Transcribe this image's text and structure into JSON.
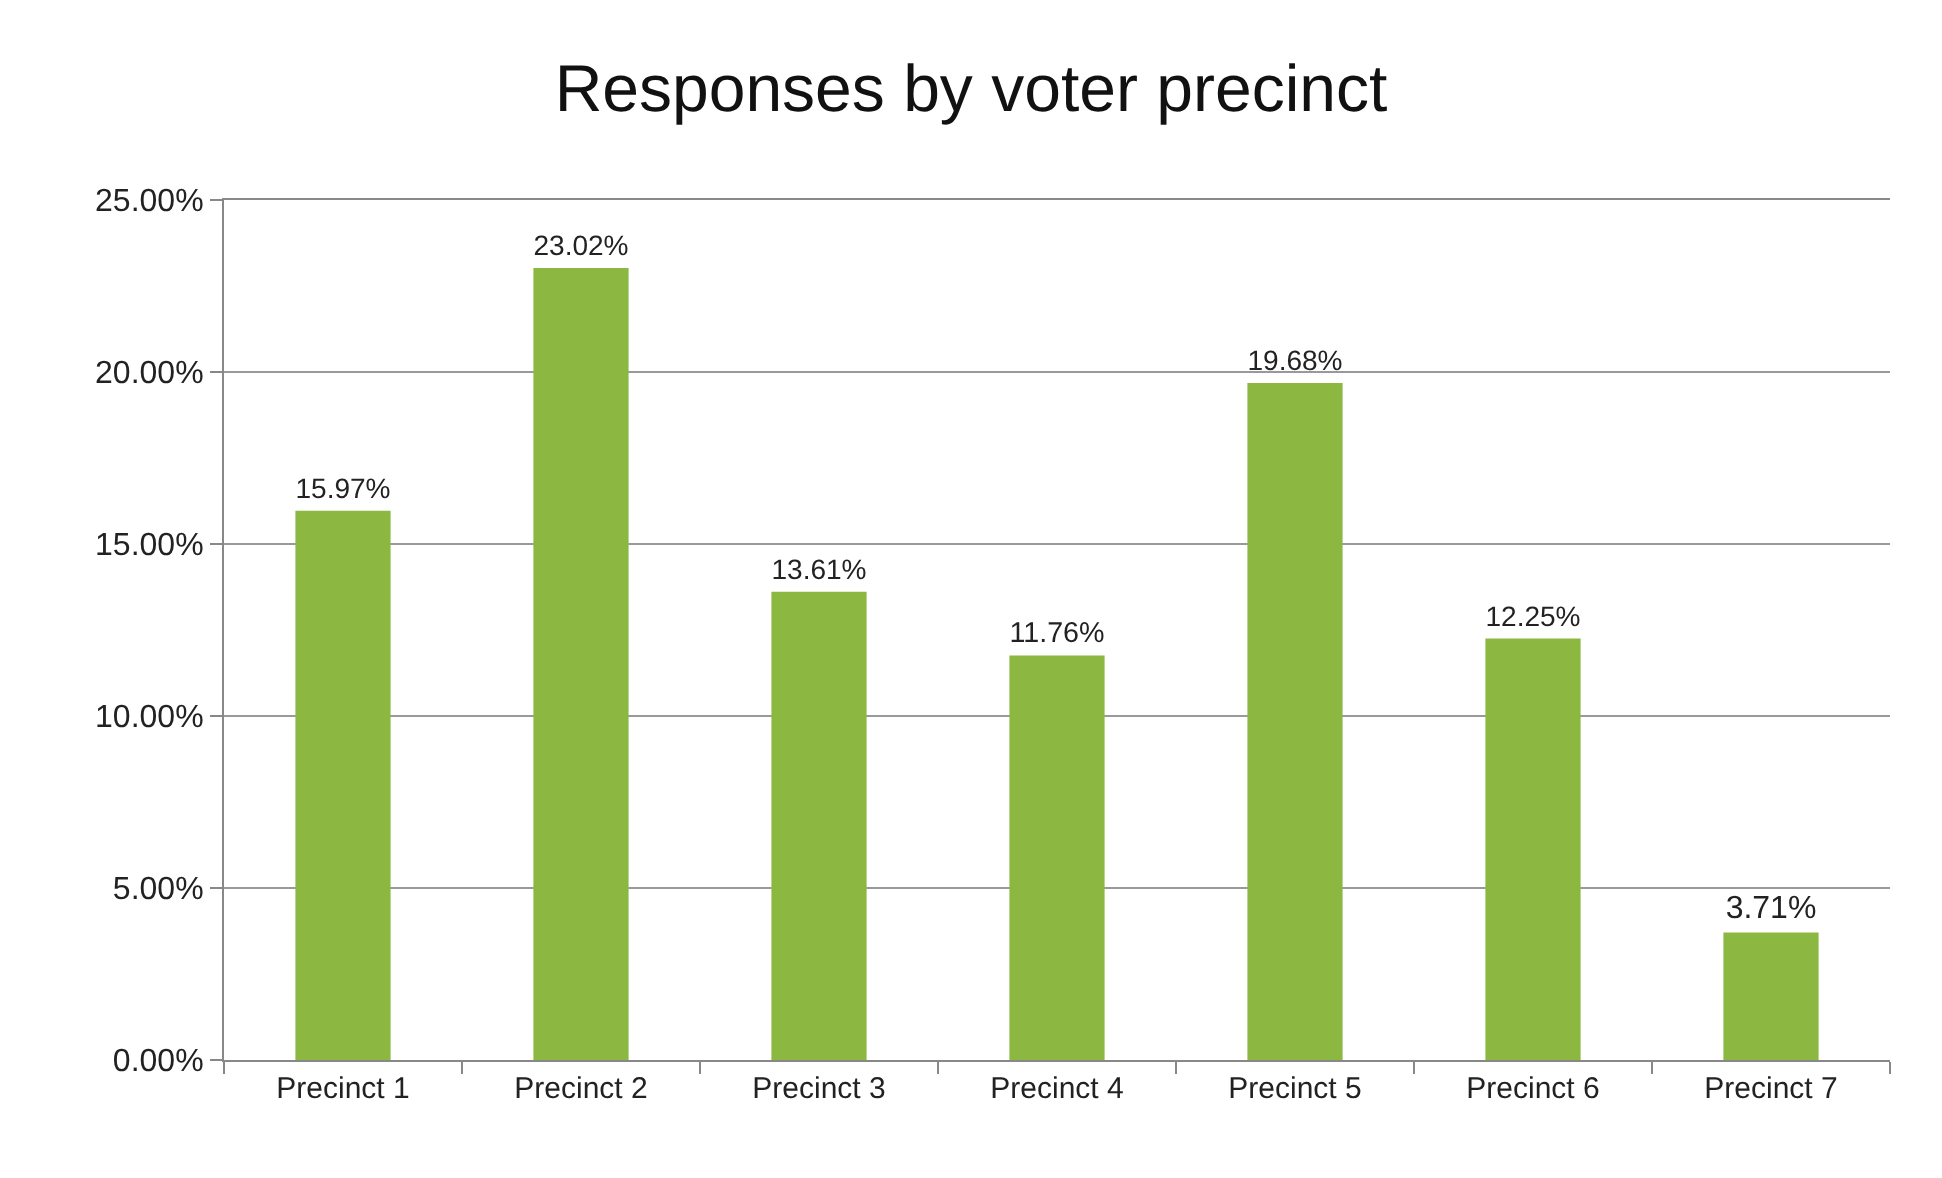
{
  "chart_data": {
    "type": "bar",
    "title": "Responses by voter precinct",
    "categories": [
      "Precinct 1",
      "Precinct 2",
      "Precinct 3",
      "Precinct 4",
      "Precinct 5",
      "Precinct 6",
      "Precinct 7"
    ],
    "values": [
      15.97,
      23.02,
      13.61,
      11.76,
      19.68,
      12.25,
      3.71
    ],
    "value_labels": [
      "15.97%",
      "23.02%",
      "13.61%",
      "11.76%",
      "19.68%",
      "12.25%",
      "3.71%"
    ],
    "color": "#8cb842",
    "ylim": [
      0,
      25
    ],
    "yticks": [
      {
        "value": 0,
        "label": "0.00%"
      },
      {
        "value": 5,
        "label": "5.00%"
      },
      {
        "value": 10,
        "label": "10.00%"
      },
      {
        "value": 15,
        "label": "15.00%"
      },
      {
        "value": 20,
        "label": "20.00%"
      },
      {
        "value": 25,
        "label": "25.00%"
      }
    ],
    "grid": "y"
  }
}
